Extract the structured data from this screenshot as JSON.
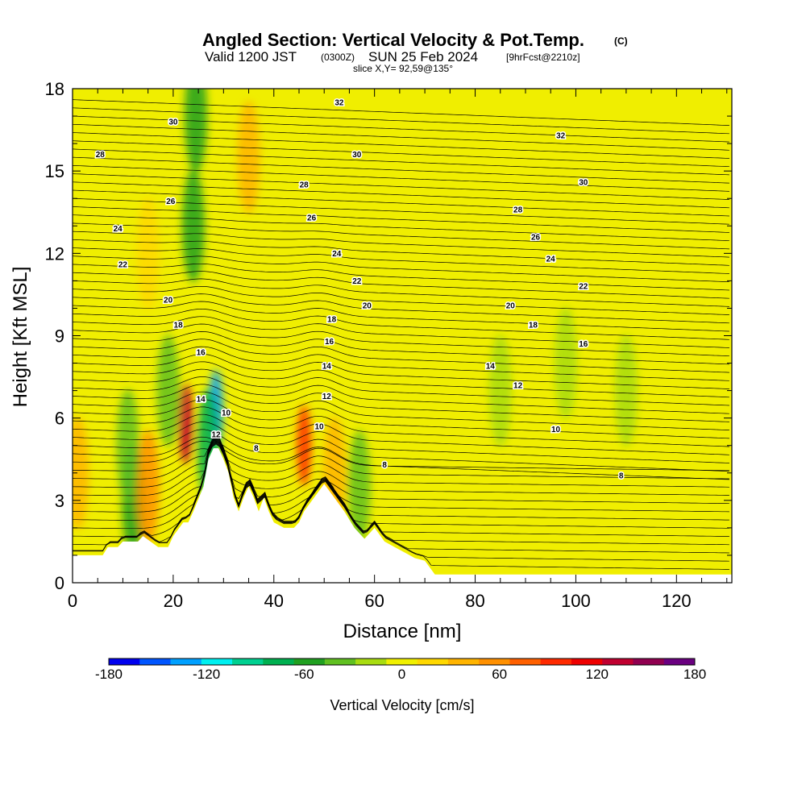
{
  "title": "Angled Section: Vertical Velocity & Pot.Temp.",
  "title_mark": "(C)",
  "subtitle": {
    "valid_prefix": "Valid 1200 JST",
    "zulu": "(0300Z)",
    "date": "SUN 25 Feb 2024",
    "forecast": "[9hrFcst@2210z]"
  },
  "slice_text": "slice X,Y= 92,59@135°",
  "colors": {
    "background": "#ffffff",
    "terrain": "#ffffff",
    "contour_line": "#000000"
  },
  "chart_data": {
    "type": "heatmap",
    "xlabel": "Distance [nm]",
    "ylabel": "Height [Kft MSL]",
    "xlim": [
      0,
      131
    ],
    "ylim": [
      0,
      18
    ],
    "x_ticks": [
      0,
      20,
      40,
      60,
      80,
      100,
      120
    ],
    "y_ticks": [
      0,
      3,
      6,
      9,
      12,
      15,
      18
    ],
    "grid": false,
    "colorbar": {
      "label": "Vertical Velocity [cm/s]",
      "range": [
        -180,
        180
      ],
      "step": 20,
      "tick_values": [
        -180,
        -120,
        -60,
        0,
        60,
        120,
        180
      ],
      "colors": [
        "#0000ee",
        "#0055ff",
        "#00a0ff",
        "#00f0f0",
        "#00d090",
        "#00b050",
        "#20a020",
        "#60c020",
        "#a8dc10",
        "#f0f000",
        "#ffd800",
        "#ffb400",
        "#ff9000",
        "#ff6000",
        "#ff2a00",
        "#ee0000",
        "#c00030",
        "#900050",
        "#6a0080"
      ]
    },
    "terrain_profile": [
      [
        0,
        1.0
      ],
      [
        6,
        1.0
      ],
      [
        7,
        1.3
      ],
      [
        9,
        1.3
      ],
      [
        10,
        1.5
      ],
      [
        13,
        1.5
      ],
      [
        14,
        1.7
      ],
      [
        17,
        1.3
      ],
      [
        19,
        1.3
      ],
      [
        20,
        1.7
      ],
      [
        22,
        2.2
      ],
      [
        23,
        2.2
      ],
      [
        24,
        2.6
      ],
      [
        26,
        3.5
      ],
      [
        27,
        4.5
      ],
      [
        28,
        4.9
      ],
      [
        29,
        4.9
      ],
      [
        30,
        4.5
      ],
      [
        31,
        4.0
      ],
      [
        32,
        3.1
      ],
      [
        33,
        2.6
      ],
      [
        34,
        3.1
      ],
      [
        35,
        3.5
      ],
      [
        36,
        3.1
      ],
      [
        37,
        2.6
      ],
      [
        38,
        3.1
      ],
      [
        39,
        2.6
      ],
      [
        40,
        2.2
      ],
      [
        42,
        2.0
      ],
      [
        44,
        2.0
      ],
      [
        45,
        2.2
      ],
      [
        46,
        2.6
      ],
      [
        48,
        3.1
      ],
      [
        50,
        3.6
      ],
      [
        52,
        3.1
      ],
      [
        54,
        2.6
      ],
      [
        56,
        2.0
      ],
      [
        58,
        1.6
      ],
      [
        60,
        2.0
      ],
      [
        62,
        1.5
      ],
      [
        64,
        1.3
      ],
      [
        66,
        1.1
      ],
      [
        68,
        0.9
      ],
      [
        70,
        0.8
      ],
      [
        72,
        0.3
      ],
      [
        131,
        0.3
      ]
    ],
    "velocity_features": [
      {
        "x": 22.5,
        "z": 5.8,
        "value": 140
      },
      {
        "x": 28.5,
        "z": 6.3,
        "value": -140
      },
      {
        "x": 27.0,
        "z": 5.0,
        "value": -80
      },
      {
        "x": 46.0,
        "z": 5.0,
        "value": 110
      },
      {
        "x": 24.0,
        "z": 13.0,
        "value": -60
      },
      {
        "x": 24.5,
        "z": 17.0,
        "value": -50
      },
      {
        "x": 35.0,
        "z": 15.5,
        "value": 40
      },
      {
        "x": 1.0,
        "z": 4.0,
        "value": 40
      },
      {
        "x": 12.0,
        "z": 3.0,
        "value": -50
      },
      {
        "x": 15.0,
        "z": 3.5,
        "value": 60
      },
      {
        "x": 52.0,
        "z": 4.0,
        "value": 40
      },
      {
        "x": 57.0,
        "z": 3.5,
        "value": -40
      },
      {
        "x": 85.0,
        "z": 7.0,
        "value": -20
      },
      {
        "x": 98.0,
        "z": 8.0,
        "value": -20
      },
      {
        "x": 110.0,
        "z": 7.0,
        "value": -20
      },
      {
        "x": 15.0,
        "z": 12.0,
        "value": 30
      },
      {
        "x": 11.0,
        "z": 5.0,
        "value": -40
      },
      {
        "x": 19.0,
        "z": 7.0,
        "value": -30
      }
    ],
    "contour_labels": [
      {
        "text": "30",
        "x": 20.0,
        "z": 16.8
      },
      {
        "text": "28",
        "x": 5.5,
        "z": 15.6
      },
      {
        "text": "26",
        "x": 19.5,
        "z": 13.9
      },
      {
        "text": "24",
        "x": 9.0,
        "z": 12.9
      },
      {
        "text": "22",
        "x": 10.0,
        "z": 11.6
      },
      {
        "text": "20",
        "x": 19.0,
        "z": 10.3
      },
      {
        "text": "18",
        "x": 21.0,
        "z": 9.4
      },
      {
        "text": "16",
        "x": 25.5,
        "z": 8.4
      },
      {
        "text": "14",
        "x": 25.5,
        "z": 6.7
      },
      {
        "text": "10",
        "x": 30.5,
        "z": 6.2
      },
      {
        "text": "12",
        "x": 28.5,
        "z": 5.4
      },
      {
        "text": "8",
        "x": 36.5,
        "z": 4.9
      },
      {
        "text": "32",
        "x": 53.0,
        "z": 17.5
      },
      {
        "text": "30",
        "x": 56.5,
        "z": 15.6
      },
      {
        "text": "28",
        "x": 46.0,
        "z": 14.5
      },
      {
        "text": "26",
        "x": 47.5,
        "z": 13.3
      },
      {
        "text": "24",
        "x": 52.5,
        "z": 12.0
      },
      {
        "text": "22",
        "x": 56.5,
        "z": 11.0
      },
      {
        "text": "20",
        "x": 58.5,
        "z": 10.1
      },
      {
        "text": "18",
        "x": 51.5,
        "z": 9.6
      },
      {
        "text": "16",
        "x": 51.0,
        "z": 8.8
      },
      {
        "text": "14",
        "x": 50.5,
        "z": 7.9
      },
      {
        "text": "12",
        "x": 50.5,
        "z": 6.8
      },
      {
        "text": "10",
        "x": 49.0,
        "z": 5.7
      },
      {
        "text": "8",
        "x": 62.0,
        "z": 4.3
      },
      {
        "text": "32",
        "x": 97.0,
        "z": 16.3
      },
      {
        "text": "30",
        "x": 101.5,
        "z": 14.6
      },
      {
        "text": "28",
        "x": 88.5,
        "z": 13.6
      },
      {
        "text": "26",
        "x": 92.0,
        "z": 12.6
      },
      {
        "text": "24",
        "x": 95.0,
        "z": 11.8
      },
      {
        "text": "22",
        "x": 101.5,
        "z": 10.8
      },
      {
        "text": "20",
        "x": 87.0,
        "z": 10.1
      },
      {
        "text": "18",
        "x": 91.5,
        "z": 9.4
      },
      {
        "text": "16",
        "x": 101.5,
        "z": 8.7
      },
      {
        "text": "14",
        "x": 83.0,
        "z": 7.9
      },
      {
        "text": "12",
        "x": 88.5,
        "z": 7.2
      },
      {
        "text": "10",
        "x": 96.0,
        "z": 5.6
      },
      {
        "text": "8",
        "x": 109.0,
        "z": 3.9
      }
    ]
  }
}
